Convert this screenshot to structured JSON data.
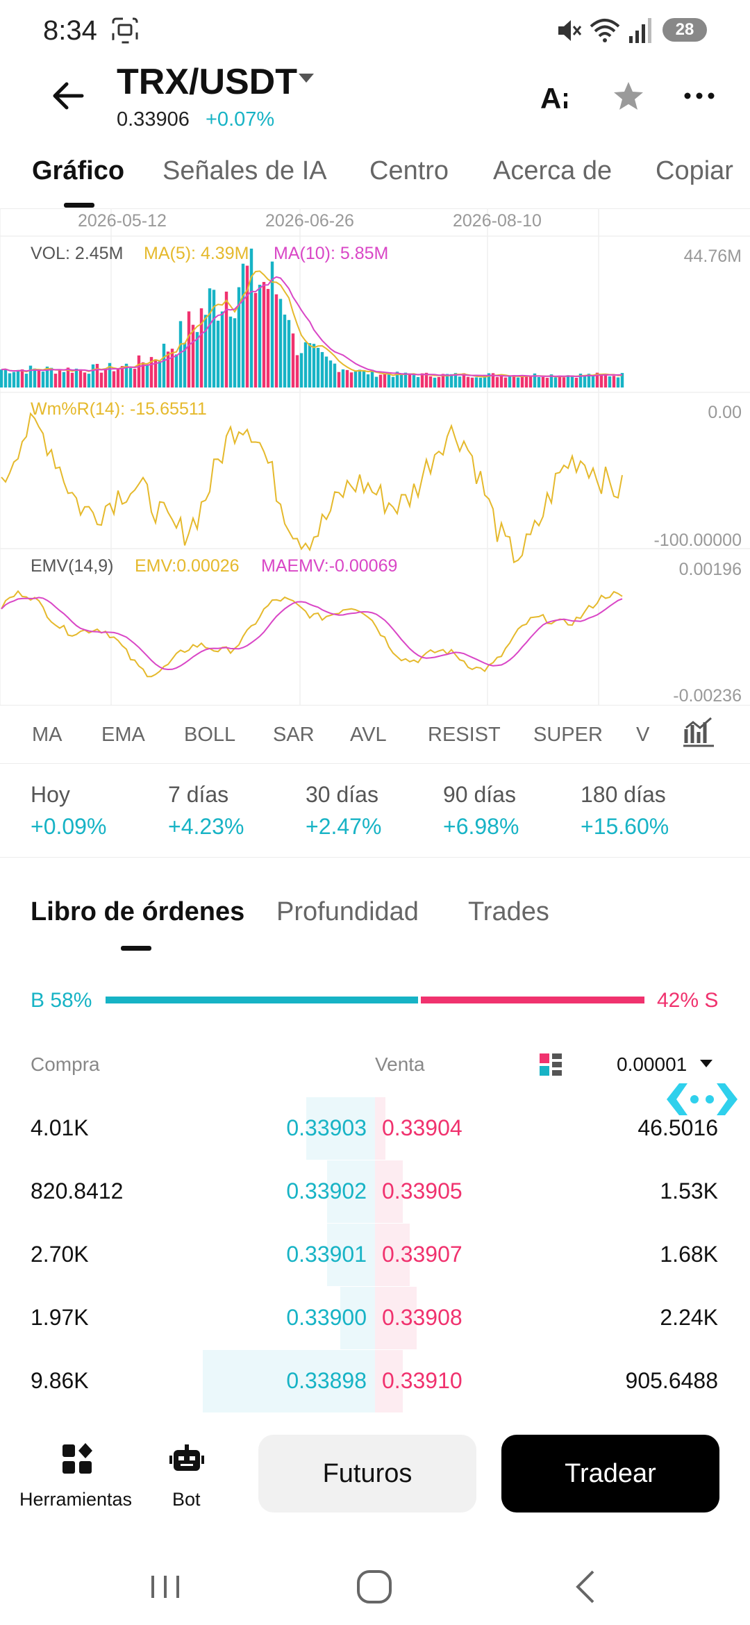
{
  "status_bar": {
    "time": "8:34",
    "battery": "28"
  },
  "header": {
    "pair": "TRX/USDT",
    "price": "0.33906",
    "change": "+0.07%"
  },
  "tabs": [
    "Gráfico",
    "Señales de IA",
    "Centro",
    "Acerca de",
    "Copiar"
  ],
  "chart": {
    "dates": [
      "2026-05-12",
      "2026-06-26",
      "2026-08-10"
    ],
    "volume": {
      "label": "VOL: 2.45M",
      "ma5": "MA(5): 4.39M",
      "ma10": "MA(10): 5.85M",
      "axis_max": "44.76M"
    },
    "williams": {
      "label": "Wm%R(14): -15.65511",
      "axis_top": "0.00",
      "axis_bottom": "-100.00000"
    },
    "emv": {
      "label": "EMV(14,9)",
      "emv": "EMV:0.00026",
      "maemv": "MAEMV:-0.00069",
      "axis_top": "0.00196",
      "axis_bottom": "-0.00236"
    },
    "colors": {
      "up": "#17b3c5",
      "down": "#f0326e",
      "ma5": "#e5b92c",
      "ma10": "#d946c6"
    }
  },
  "indicators": [
    "MA",
    "EMA",
    "BOLL",
    "SAR",
    "AVL",
    "RESIST",
    "SUPER",
    "V"
  ],
  "periods": [
    {
      "name": "Hoy",
      "value": "+0.09%"
    },
    {
      "name": "7 días",
      "value": "+4.23%"
    },
    {
      "name": "30 días",
      "value": "+2.47%"
    },
    {
      "name": "90 días",
      "value": "+6.98%"
    },
    {
      "name": "180 días",
      "value": "+15.60%"
    }
  ],
  "book_tabs": [
    "Libro de órdenes",
    "Profundidad",
    "Trades"
  ],
  "ratio": {
    "buy_label": "B 58%",
    "sell_label": "42% S",
    "buy_fraction": 0.58
  },
  "book_header": {
    "buy": "Compra",
    "sell": "Venta",
    "precision": "0.00001"
  },
  "orders": [
    {
      "bid_qty": "4.01K",
      "bid_price": "0.33903",
      "ask_price": "0.33904",
      "ask_qty": "46.5016",
      "bid_depth": 0.2,
      "ask_depth": 0.03
    },
    {
      "bid_qty": "820.8412",
      "bid_price": "0.33902",
      "ask_price": "0.33905",
      "ask_qty": "1.53K",
      "bid_depth": 0.14,
      "ask_depth": 0.08
    },
    {
      "bid_qty": "2.70K",
      "bid_price": "0.33901",
      "ask_price": "0.33907",
      "ask_qty": "1.68K",
      "bid_depth": 0.14,
      "ask_depth": 0.1
    },
    {
      "bid_qty": "1.97K",
      "bid_price": "0.33900",
      "ask_price": "0.33908",
      "ask_qty": "2.24K",
      "bid_depth": 0.1,
      "ask_depth": 0.12
    },
    {
      "bid_qty": "9.86K",
      "bid_price": "0.33898",
      "ask_price": "0.33910",
      "ask_qty": "905.6488",
      "bid_depth": 0.5,
      "ask_depth": 0.08
    }
  ],
  "bottom": {
    "tools_label": "Herramientas",
    "bot_label": "Bot",
    "futures_label": "Futuros",
    "trade_label": "Tradear"
  }
}
